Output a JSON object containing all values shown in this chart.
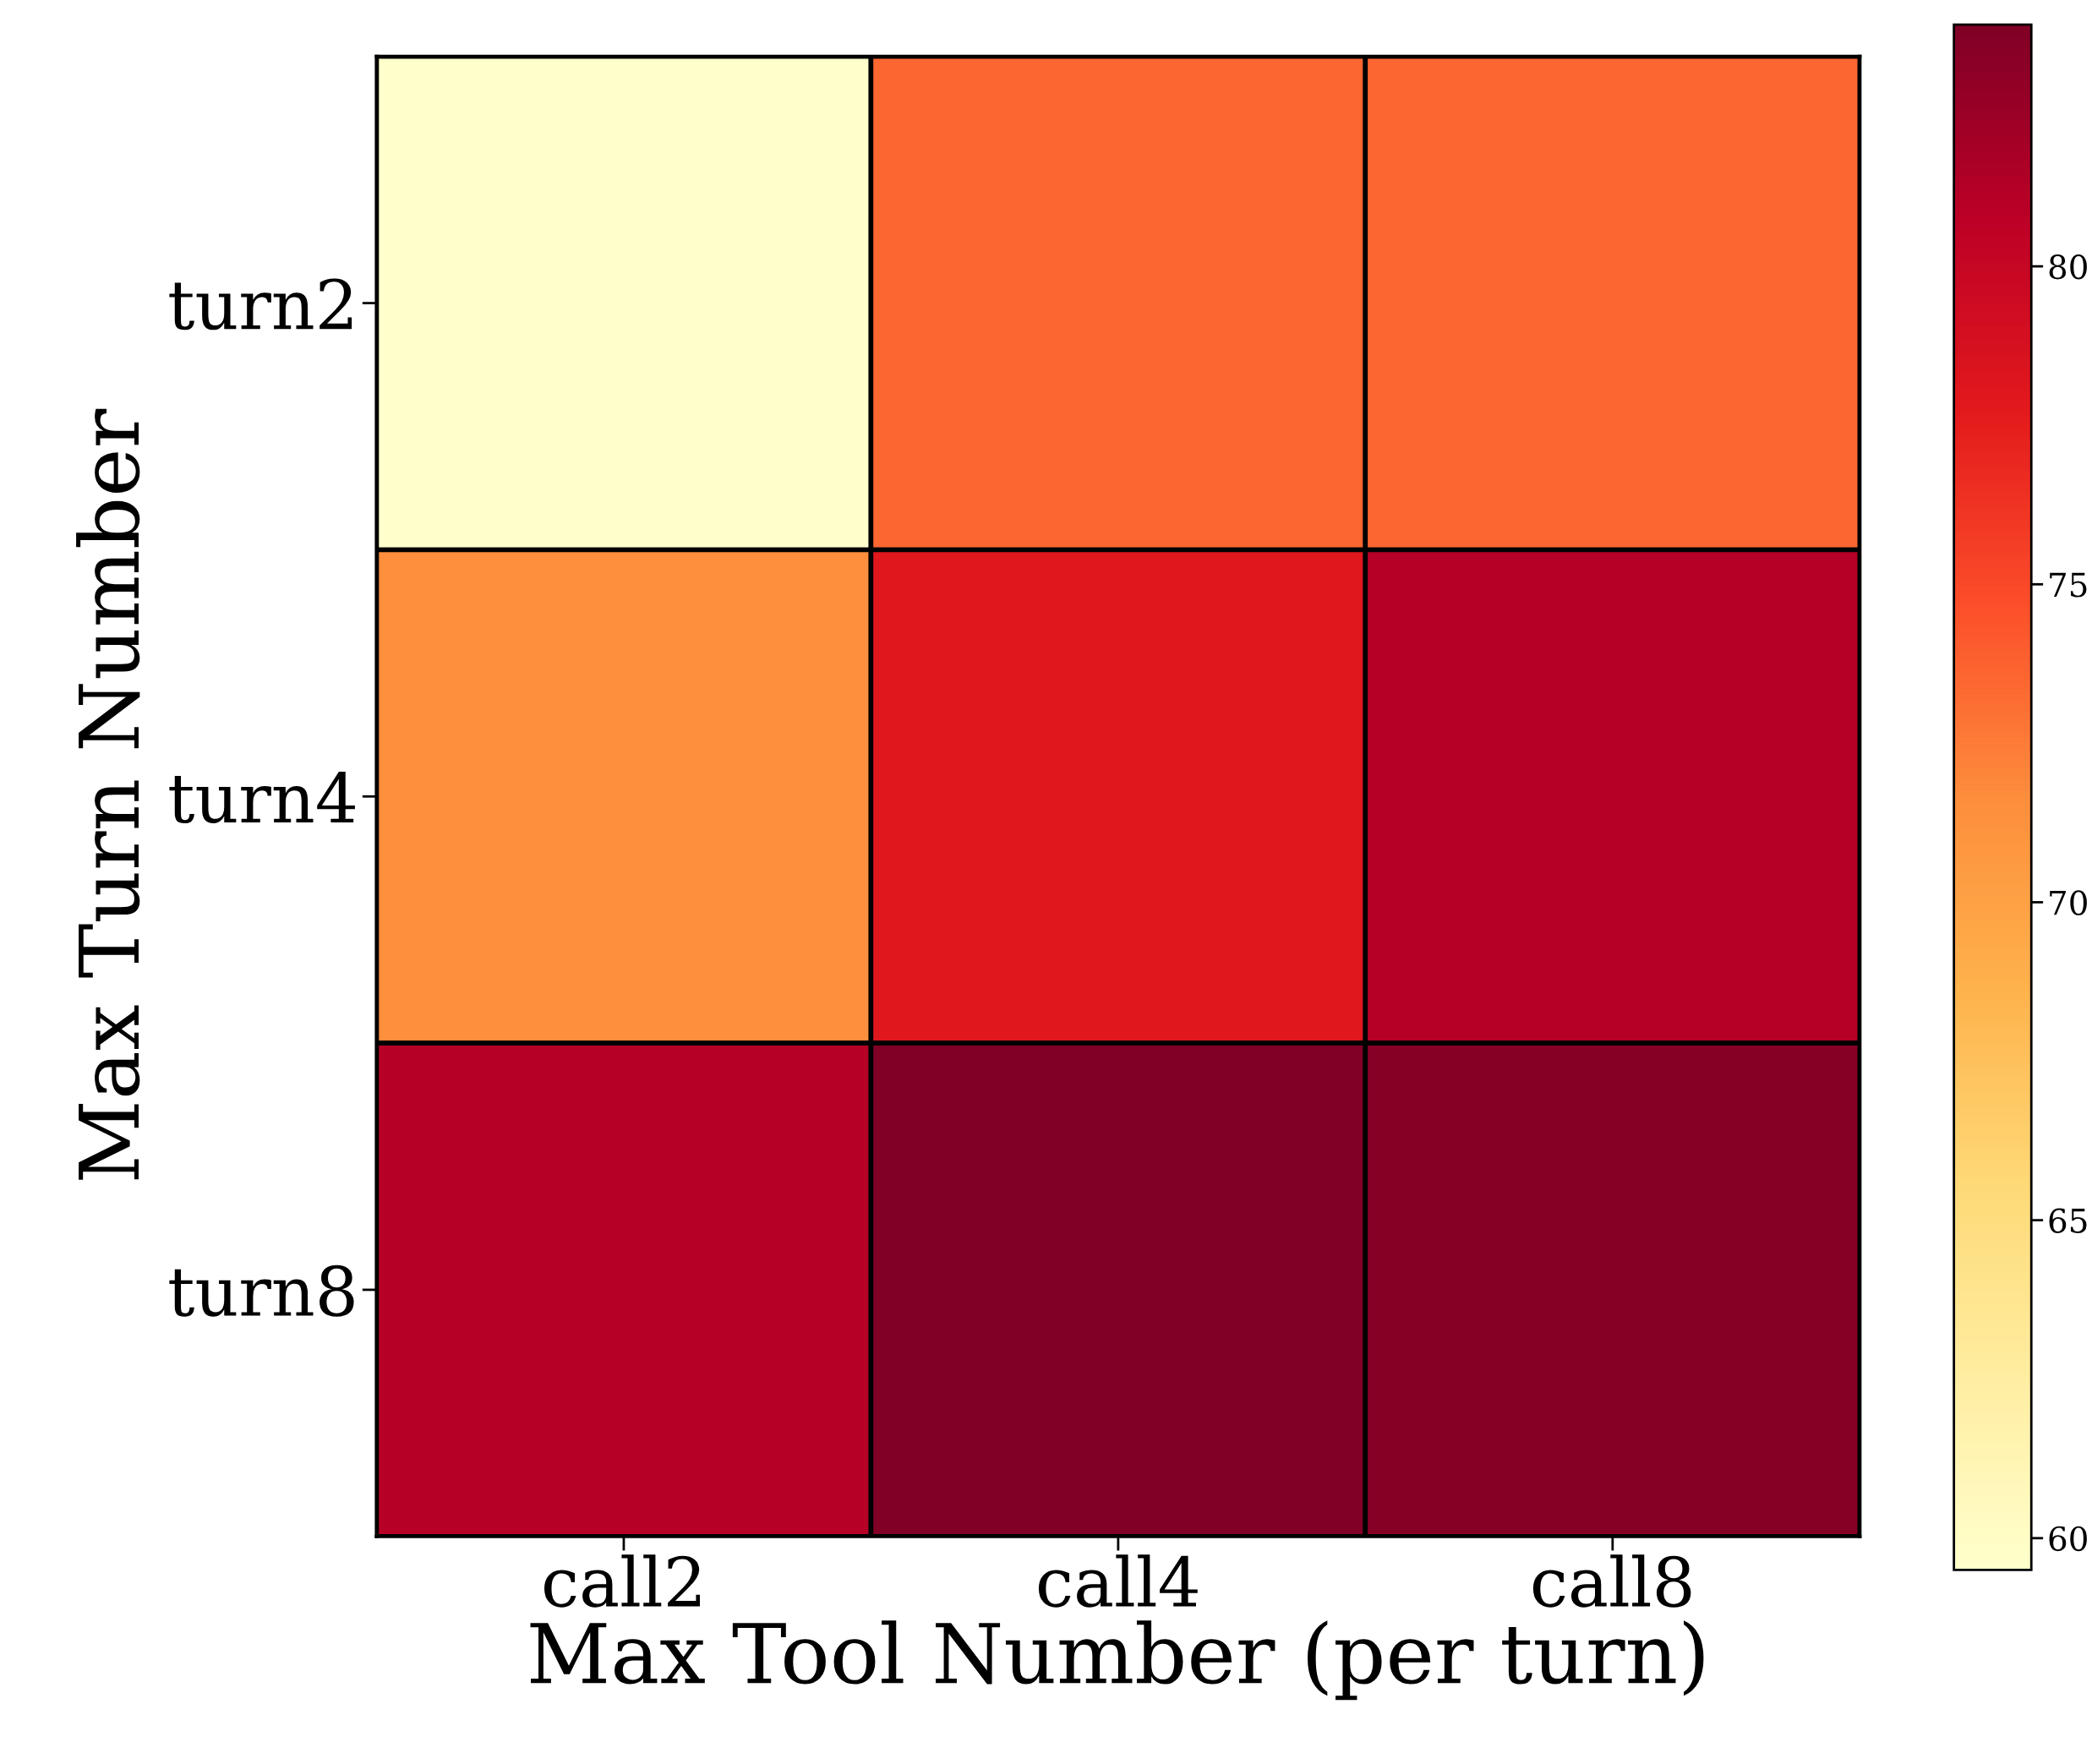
{
  "chart_data": {
    "type": "heatmap",
    "xlabel": "Max Tool Number (per turn)",
    "ylabel": "Max Turn Number",
    "categories": [
      "call2",
      "call4",
      "call8"
    ],
    "y_categories": [
      "turn2",
      "turn4",
      "turn8"
    ],
    "cells": [
      [
        59.5,
        73.5,
        73.5
      ],
      [
        71.5,
        78,
        81
      ],
      [
        81,
        83.8,
        83.5
      ]
    ],
    "clim": [
      59.5,
      83.8
    ],
    "cticks": [
      60,
      65,
      70,
      75,
      80
    ]
  }
}
